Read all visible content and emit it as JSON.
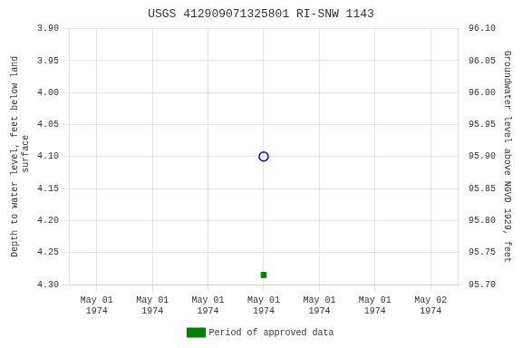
{
  "chart_data": {
    "type": "scatter",
    "title": "USGS 412909071325801 RI-SNW 1143",
    "ylabel": "Depth to water level, feet below land\n surface",
    "y2label": "Groundwater level above NGVD 1929, feet",
    "categories": [
      "May 01\n1974",
      "May 01\n1974",
      "May 01\n1974",
      "May 01\n1974",
      "May 01\n1974",
      "May 01\n1974",
      "May 02\n1974"
    ],
    "series": [
      {
        "color": "#0000cc",
        "marker": "circle",
        "values": [
          null,
          null,
          null,
          4.1,
          null,
          null,
          null
        ]
      },
      {
        "name": "Period of approved data",
        "color": "#008000",
        "marker": "square",
        "values": [
          null,
          null,
          null,
          4.285,
          null,
          null,
          null
        ]
      }
    ],
    "ylim": [
      4.3,
      3.9
    ],
    "yticks": [
      {
        "value": 3.9,
        "label": "3.90"
      },
      3.95,
      {
        "value": 4.0,
        "label": "4.00"
      },
      4.05,
      {
        "value": 4.1,
        "label": "4.10"
      },
      4.15,
      {
        "value": 4.2,
        "label": "4.20"
      },
      4.25,
      {
        "value": 4.3,
        "label": "4.30"
      }
    ],
    "y2lim": [
      95.7,
      96.1
    ],
    "y2ticks": [
      {
        "value": 95.7,
        "label": "95.70"
      },
      95.75,
      {
        "value": 95.8,
        "label": "95.80"
      },
      95.85,
      {
        "value": 95.9,
        "label": "95.90"
      },
      95.95,
      {
        "value": 96.0,
        "label": "96.00"
      },
      96.05,
      {
        "value": 96.1,
        "label": "96.10"
      }
    ],
    "grid": true,
    "legend": "bottom"
  }
}
